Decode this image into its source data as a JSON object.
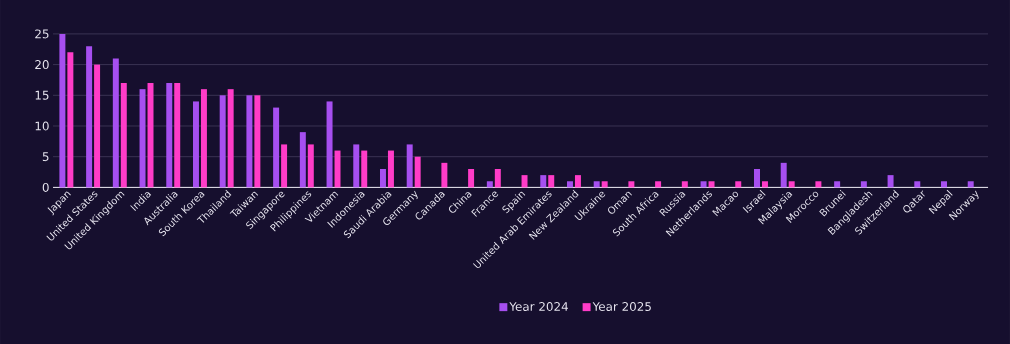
{
  "chart_data": {
    "type": "bar",
    "categories": [
      "Japan",
      "United States",
      "United Kingdom",
      "India",
      "Australia",
      "South Korea",
      "Thailand",
      "Taiwan",
      "Singapore",
      "Philippines",
      "Vietnam",
      "Indonesia",
      "Saudi Arabia",
      "Germany",
      "Canada",
      "China",
      "France",
      "Spain",
      "United Arab Emirates",
      "New Zealand",
      "Ukraine",
      "Oman",
      "South Africa",
      "Russia",
      "Netherlands",
      "Macao",
      "Israel",
      "Malaysia",
      "Morocco",
      "Brunei",
      "Bangladesh",
      "Switzerland",
      "Qatar",
      "Nepal",
      "Norway"
    ],
    "series": [
      {
        "name": "Year 2024",
        "color": "#a64ff0",
        "values": [
          25,
          23,
          21,
          16,
          17,
          14,
          15,
          15,
          13,
          9,
          14,
          7,
          3,
          7,
          0,
          0,
          1,
          0,
          2,
          1,
          1,
          0,
          0,
          0,
          1,
          0,
          3,
          4,
          0,
          1,
          1,
          2,
          1,
          1,
          1
        ]
      },
      {
        "name": "Year 2025",
        "color": "#ff3cc8",
        "values": [
          22,
          20,
          17,
          17,
          17,
          16,
          16,
          15,
          7,
          7,
          6,
          6,
          6,
          5,
          4,
          3,
          3,
          2,
          2,
          2,
          1,
          1,
          1,
          1,
          1,
          1,
          1,
          1,
          1,
          0,
          0,
          0,
          0,
          0,
          0
        ]
      }
    ],
    "ylim": [
      0,
      25
    ],
    "yticks": [
      0,
      5,
      10,
      15,
      20,
      25
    ],
    "grid": "y",
    "legend": "bottom"
  }
}
